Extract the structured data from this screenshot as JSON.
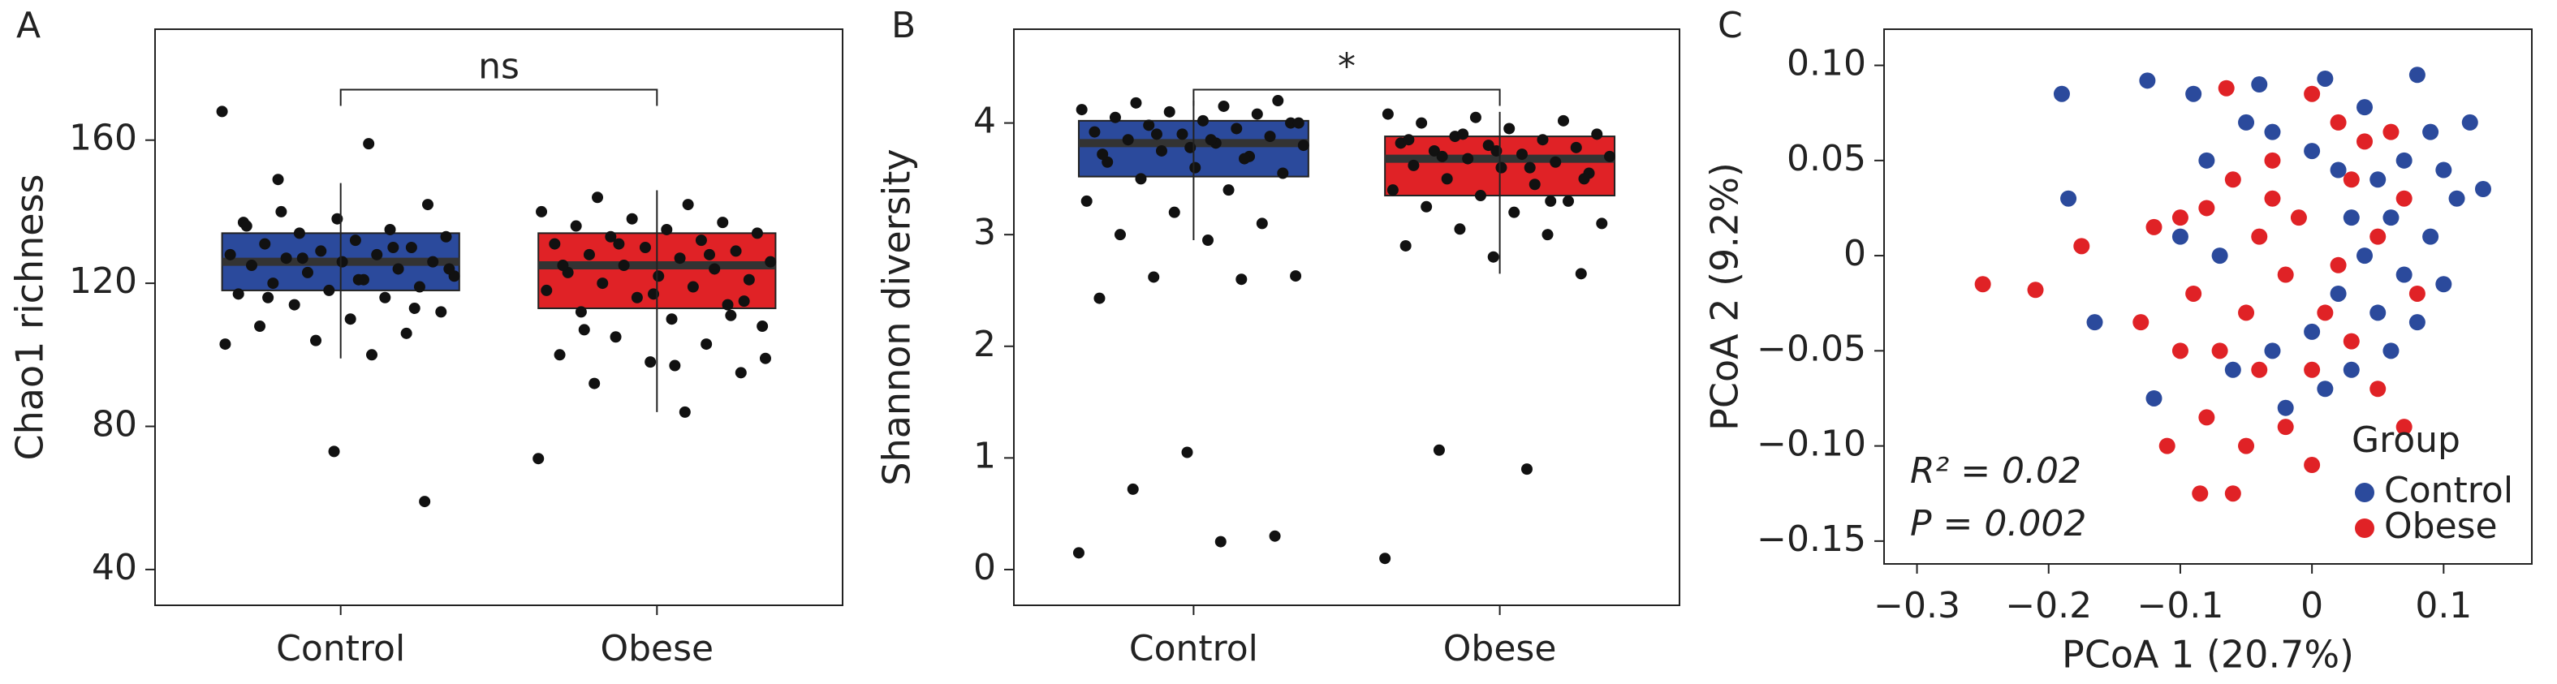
{
  "chart_data": [
    {
      "type": "box",
      "panel": "A",
      "ylabel": "Chao1 richness",
      "categories": [
        "Control",
        "Obese"
      ],
      "boxes": [
        {
          "color": "#2b4a9c",
          "low": 99,
          "q1": 118,
          "median": 126,
          "q3": 134,
          "high": 148
        },
        {
          "color": "#e02226",
          "low": 84,
          "q1": 113,
          "median": 125,
          "q3": 134,
          "high": 146
        }
      ],
      "points": [
        [
          168,
          159,
          149,
          59,
          73,
          137,
          135,
          134,
          133,
          132,
          131,
          130,
          129,
          128,
          128,
          127,
          126,
          126,
          125,
          124,
          123,
          122,
          121,
          120,
          119,
          118,
          117,
          116,
          114,
          112,
          110,
          108,
          106,
          104,
          103,
          100,
          140,
          142,
          138,
          136,
          130,
          127,
          124,
          121,
          116,
          113
        ],
        [
          71,
          84,
          92,
          95,
          98,
          100,
          103,
          105,
          108,
          110,
          112,
          114,
          116,
          118,
          119,
          120,
          121,
          122,
          123,
          124,
          125,
          126,
          127,
          128,
          129,
          130,
          131,
          132,
          133,
          134,
          135,
          136,
          137,
          138,
          140,
          142,
          144,
          115,
          117,
          125,
          128,
          131,
          99,
          97,
          107,
          111
        ]
      ],
      "significance": "ns",
      "ylim": [
        30,
        191
      ],
      "yticks": [
        40,
        80,
        120,
        160
      ]
    },
    {
      "type": "box",
      "panel": "B",
      "ylabel": "Shannon diversity",
      "categories": [
        "Control",
        "Obese"
      ],
      "boxes": [
        {
          "color": "#2b4a9c",
          "low": 2.95,
          "q1": 3.52,
          "median": 3.82,
          "q3": 4.02,
          "high": 4.2
        },
        {
          "color": "#e02226",
          "low": 2.65,
          "q1": 3.35,
          "median": 3.68,
          "q3": 3.88,
          "high": 4.1
        }
      ],
      "points": [
        [
          0.15,
          0.25,
          0.72,
          0.3,
          1.05,
          2.43,
          2.6,
          2.62,
          2.63,
          2.95,
          3.0,
          3.1,
          3.2,
          3.3,
          3.4,
          3.5,
          3.55,
          3.6,
          3.65,
          3.7,
          3.75,
          3.8,
          3.82,
          3.85,
          3.88,
          3.9,
          3.92,
          3.95,
          3.98,
          4.0,
          4.02,
          4.05,
          4.08,
          4.1,
          4.12,
          4.15,
          4.18,
          4.2,
          3.78,
          3.72,
          3.68,
          3.9,
          4.0,
          3.85
        ],
        [
          0.1,
          0.9,
          1.07,
          2.65,
          2.8,
          2.9,
          3.0,
          3.05,
          3.1,
          3.2,
          3.25,
          3.3,
          3.35,
          3.4,
          3.45,
          3.5,
          3.55,
          3.6,
          3.62,
          3.65,
          3.68,
          3.7,
          3.72,
          3.75,
          3.78,
          3.8,
          3.82,
          3.85,
          3.88,
          3.9,
          3.95,
          4.0,
          4.02,
          4.05,
          4.08,
          3.6,
          3.7,
          3.5,
          3.75,
          3.85,
          3.3,
          3.9
        ]
      ],
      "significance": "*",
      "ylim": [
        -0.32,
        4.84
      ],
      "yticks": [
        0,
        1,
        2,
        3,
        4
      ]
    },
    {
      "type": "scatter",
      "panel": "C",
      "xlabel": "PCoA 1 (20.7%)",
      "ylabel": "PCoA 2 (9.2%)",
      "xlim": [
        -0.325,
        0.167
      ],
      "ylim": [
        -0.162,
        0.119
      ],
      "xticks": [
        {
          "value": -0.3,
          "label": "−0.3"
        },
        {
          "value": -0.2,
          "label": "−0.2"
        },
        {
          "value": -0.1,
          "label": "−0.1"
        },
        0,
        0.1
      ],
      "yticks": [
        {
          "value": -0.15,
          "label": "−0.15"
        },
        {
          "value": -0.1,
          "label": "−0.10"
        },
        {
          "value": -0.05,
          "label": "−0.05"
        },
        0,
        0.05,
        {
          "value": 0.1,
          "label": "0.10"
        }
      ],
      "legend_title": "Group",
      "legend": "lower right",
      "annotations": [
        "R² = 0.02",
        "P = 0.002"
      ],
      "series": [
        {
          "name": "Control",
          "color": "#2b4a9c",
          "x": [
            -0.19,
            -0.125,
            -0.09,
            -0.04,
            0.01,
            0.08,
            0.04,
            0.12,
            0.13,
            -0.185,
            -0.165,
            -0.12,
            -0.08,
            -0.05,
            -0.03,
            0.0,
            0.02,
            0.05,
            0.07,
            0.1,
            0.11,
            0.03,
            0.06,
            0.09,
            0.04,
            0.07,
            0.1,
            0.02,
            0.05,
            0.08,
            0.0,
            -0.03,
            -0.06,
            0.03,
            -0.02,
            0.01,
            0.06,
            -0.1,
            -0.07,
            0.09
          ],
          "y": [
            0.085,
            0.092,
            0.085,
            0.09,
            0.093,
            0.095,
            0.078,
            0.07,
            0.035,
            0.03,
            -0.035,
            -0.075,
            0.05,
            0.07,
            0.065,
            0.055,
            0.045,
            0.04,
            0.05,
            0.045,
            0.03,
            0.02,
            0.02,
            0.01,
            0.0,
            -0.01,
            -0.015,
            -0.02,
            -0.03,
            -0.035,
            -0.04,
            -0.05,
            -0.06,
            -0.06,
            -0.08,
            -0.07,
            -0.05,
            0.01,
            0.0,
            0.065
          ]
        },
        {
          "name": "Obese",
          "color": "#e02226",
          "x": [
            -0.25,
            -0.21,
            -0.175,
            -0.13,
            -0.12,
            -0.1,
            -0.11,
            -0.085,
            -0.06,
            -0.065,
            -0.08,
            -0.07,
            -0.05,
            -0.04,
            -0.03,
            -0.02,
            -0.01,
            0.0,
            0.02,
            0.03,
            0.05,
            0.06,
            0.07,
            0.08,
            -0.09,
            -0.06,
            -0.04,
            -0.02,
            0.0,
            0.01,
            0.03,
            0.05,
            0.07,
            -0.05,
            -0.1,
            0.04,
            -0.03,
            0.0,
            -0.08,
            0.02
          ],
          "y": [
            -0.015,
            -0.018,
            0.005,
            -0.035,
            0.015,
            0.02,
            -0.1,
            -0.125,
            -0.125,
            0.088,
            -0.085,
            -0.05,
            -0.03,
            0.01,
            0.03,
            -0.01,
            0.02,
            0.085,
            0.07,
            0.04,
            0.01,
            0.065,
            0.03,
            -0.02,
            -0.02,
            0.04,
            -0.06,
            -0.09,
            -0.11,
            -0.03,
            -0.045,
            -0.07,
            -0.09,
            -0.1,
            -0.05,
            0.06,
            0.05,
            -0.06,
            0.025,
            -0.005
          ]
        }
      ]
    }
  ]
}
